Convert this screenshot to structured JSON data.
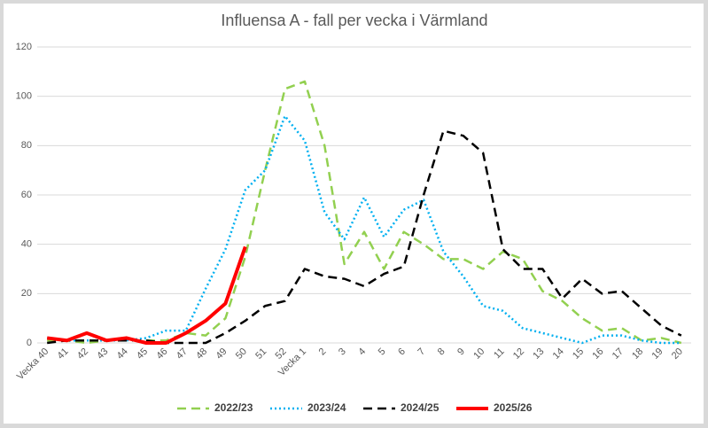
{
  "chart_data": {
    "type": "line",
    "title": "Influensa A - fall per vecka i Värmland",
    "categories": [
      "Vecka 40",
      "41",
      "42",
      "43",
      "44",
      "45",
      "46",
      "47",
      "48",
      "49",
      "50",
      "51",
      "52",
      "Vecka 1",
      "2",
      "3",
      "4",
      "5",
      "6",
      "7",
      "8",
      "9",
      "10",
      "11",
      "12",
      "13",
      "14",
      "15",
      "16",
      "17",
      "18",
      "19",
      "20"
    ],
    "series": [
      {
        "name": "2022/23",
        "color": "#92d050",
        "dash": "dashed",
        "values": [
          1,
          1,
          0,
          1,
          1,
          1,
          1,
          4,
          3,
          10,
          35,
          70,
          103,
          106,
          80,
          32,
          45,
          30,
          45,
          40,
          34,
          34,
          30,
          37,
          34,
          21,
          17,
          10,
          5,
          6,
          1,
          2,
          0
        ]
      },
      {
        "name": "2023/24",
        "color": "#00b0f0",
        "dash": "dotted",
        "values": [
          2,
          1,
          1,
          1,
          1,
          2,
          5,
          5,
          22,
          38,
          62,
          70,
          92,
          82,
          53,
          42,
          59,
          43,
          54,
          58,
          37,
          27,
          15,
          13,
          6,
          4,
          2,
          0,
          3,
          3,
          1,
          0,
          0
        ]
      },
      {
        "name": "2024/25",
        "color": "#000000",
        "dash": "dashed",
        "values": [
          0,
          1,
          1,
          1,
          1,
          1,
          0,
          0,
          0,
          4,
          9,
          15,
          17,
          30,
          27,
          26,
          23,
          28,
          31,
          60,
          86,
          84,
          77,
          38,
          30,
          30,
          18,
          26,
          20,
          21,
          14,
          7,
          3
        ]
      },
      {
        "name": "2025/26",
        "color": "#ff0000",
        "dash": "solid",
        "values": [
          2,
          1,
          4,
          1,
          2,
          0,
          0,
          4,
          9,
          16,
          39,
          null,
          null,
          null,
          null,
          null,
          null,
          null,
          null,
          null,
          null,
          null,
          null,
          null,
          null,
          null,
          null,
          null,
          null,
          null,
          null,
          null,
          null
        ]
      }
    ],
    "ylim": [
      0,
      120
    ],
    "yticks": [
      0,
      20,
      40,
      60,
      80,
      100,
      120
    ],
    "grid": true,
    "legend": "bottom"
  }
}
